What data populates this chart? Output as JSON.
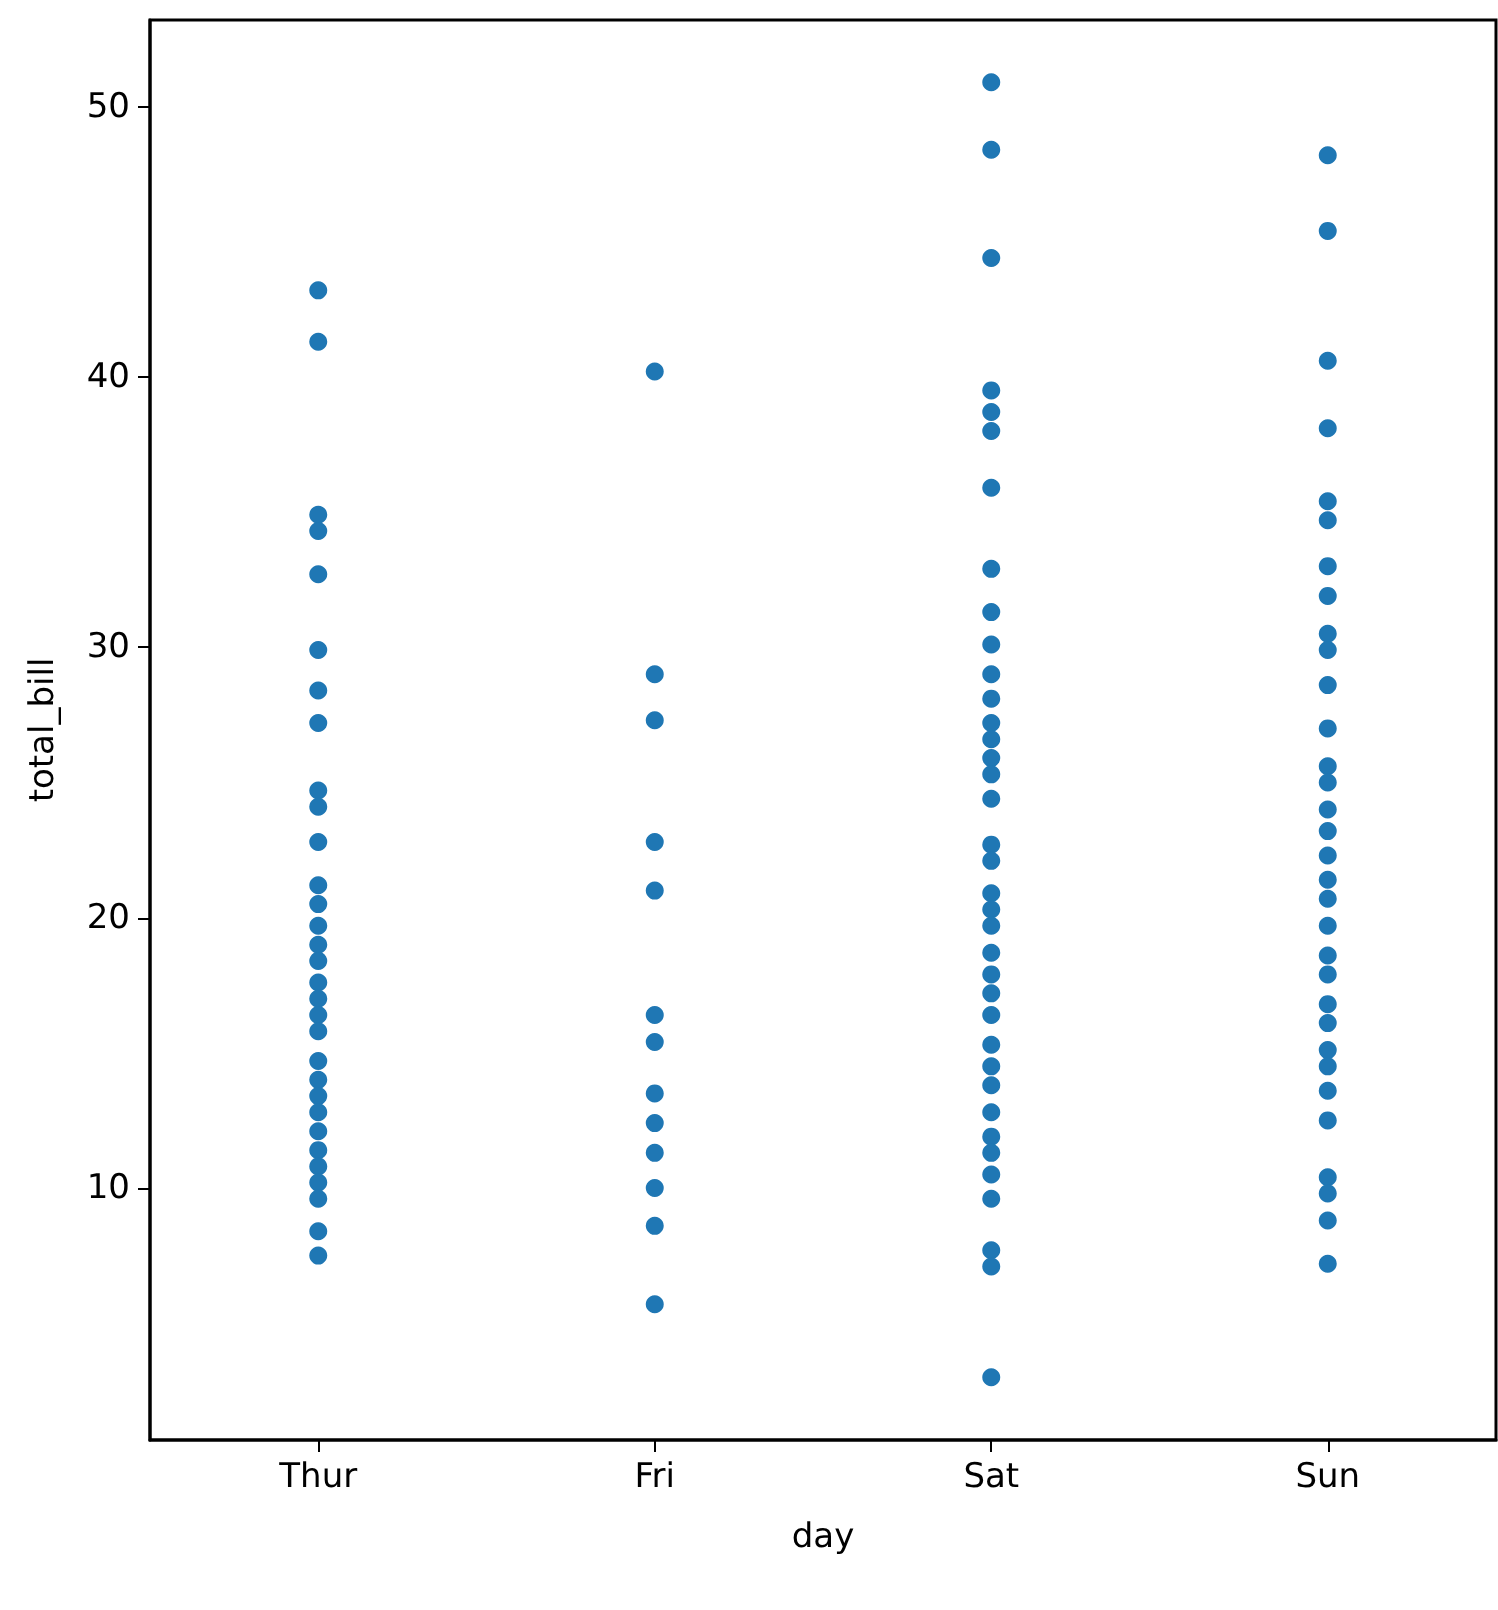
{
  "chart_data": {
    "type": "scatter",
    "xlabel": "day",
    "ylabel": "total_bill",
    "categories": [
      "Thur",
      "Fri",
      "Sat",
      "Sun"
    ],
    "ylim": [
      0.68,
      53.2
    ],
    "yticks": [
      10,
      20,
      30,
      40,
      50
    ],
    "grid": false,
    "marker": "circle",
    "series": [
      {
        "color": "#1f77b4",
        "x": [
          "Thur",
          "Thur",
          "Thur",
          "Thur",
          "Thur",
          "Thur",
          "Thur",
          "Thur",
          "Thur",
          "Thur",
          "Thur",
          "Thur",
          "Thur",
          "Thur",
          "Thur",
          "Thur",
          "Thur",
          "Thur",
          "Thur",
          "Thur",
          "Thur",
          "Thur",
          "Thur",
          "Thur",
          "Thur",
          "Thur",
          "Thur",
          "Thur",
          "Thur",
          "Thur",
          "Thur",
          "Fri",
          "Fri",
          "Fri",
          "Fri",
          "Fri",
          "Fri",
          "Fri",
          "Fri",
          "Fri",
          "Fri",
          "Fri",
          "Fri",
          "Fri",
          "Sat",
          "Sat",
          "Sat",
          "Sat",
          "Sat",
          "Sat",
          "Sat",
          "Sat",
          "Sat",
          "Sat",
          "Sat",
          "Sat",
          "Sat",
          "Sat",
          "Sat",
          "Sat",
          "Sat",
          "Sat",
          "Sat",
          "Sat",
          "Sat",
          "Sat",
          "Sat",
          "Sat",
          "Sat",
          "Sat",
          "Sat",
          "Sat",
          "Sat",
          "Sat",
          "Sat",
          "Sat",
          "Sat",
          "Sat",
          "Sat",
          "Sat",
          "Sat",
          "Sun",
          "Sun",
          "Sun",
          "Sun",
          "Sun",
          "Sun",
          "Sun",
          "Sun",
          "Sun",
          "Sun",
          "Sun",
          "Sun",
          "Sun",
          "Sun",
          "Sun",
          "Sun",
          "Sun",
          "Sun",
          "Sun",
          "Sun",
          "Sun",
          "Sun",
          "Sun",
          "Sun",
          "Sun",
          "Sun",
          "Sun",
          "Sun",
          "Sun",
          "Sun",
          "Sun",
          "Sun"
        ],
        "values": [
          43.2,
          41.3,
          34.9,
          34.3,
          32.7,
          29.9,
          28.4,
          27.2,
          24.7,
          24.1,
          22.8,
          21.2,
          20.5,
          19.7,
          19.0,
          18.4,
          17.6,
          17.0,
          16.4,
          15.8,
          14.7,
          14.0,
          13.4,
          12.8,
          12.1,
          11.4,
          10.8,
          10.2,
          9.6,
          8.4,
          7.5,
          40.2,
          29.0,
          27.3,
          22.8,
          21.0,
          16.4,
          15.4,
          13.5,
          12.4,
          11.3,
          10.0,
          8.6,
          5.7,
          50.9,
          48.4,
          44.4,
          39.5,
          38.7,
          38.0,
          35.9,
          32.9,
          31.3,
          30.1,
          29.0,
          28.1,
          27.2,
          26.6,
          25.9,
          25.3,
          24.4,
          22.7,
          22.1,
          20.9,
          20.3,
          19.7,
          18.7,
          17.9,
          17.2,
          16.4,
          15.3,
          14.5,
          13.8,
          12.8,
          11.9,
          11.3,
          10.5,
          9.6,
          7.7,
          7.1,
          3.0,
          48.2,
          45.4,
          40.6,
          38.1,
          35.4,
          34.7,
          33.0,
          31.9,
          30.5,
          29.9,
          28.6,
          27.0,
          25.6,
          25.0,
          24.0,
          23.2,
          22.3,
          21.4,
          20.7,
          19.7,
          18.6,
          17.9,
          16.8,
          16.1,
          15.1,
          14.5,
          13.6,
          12.5,
          10.4,
          9.8,
          8.8,
          7.2
        ]
      }
    ]
  }
}
